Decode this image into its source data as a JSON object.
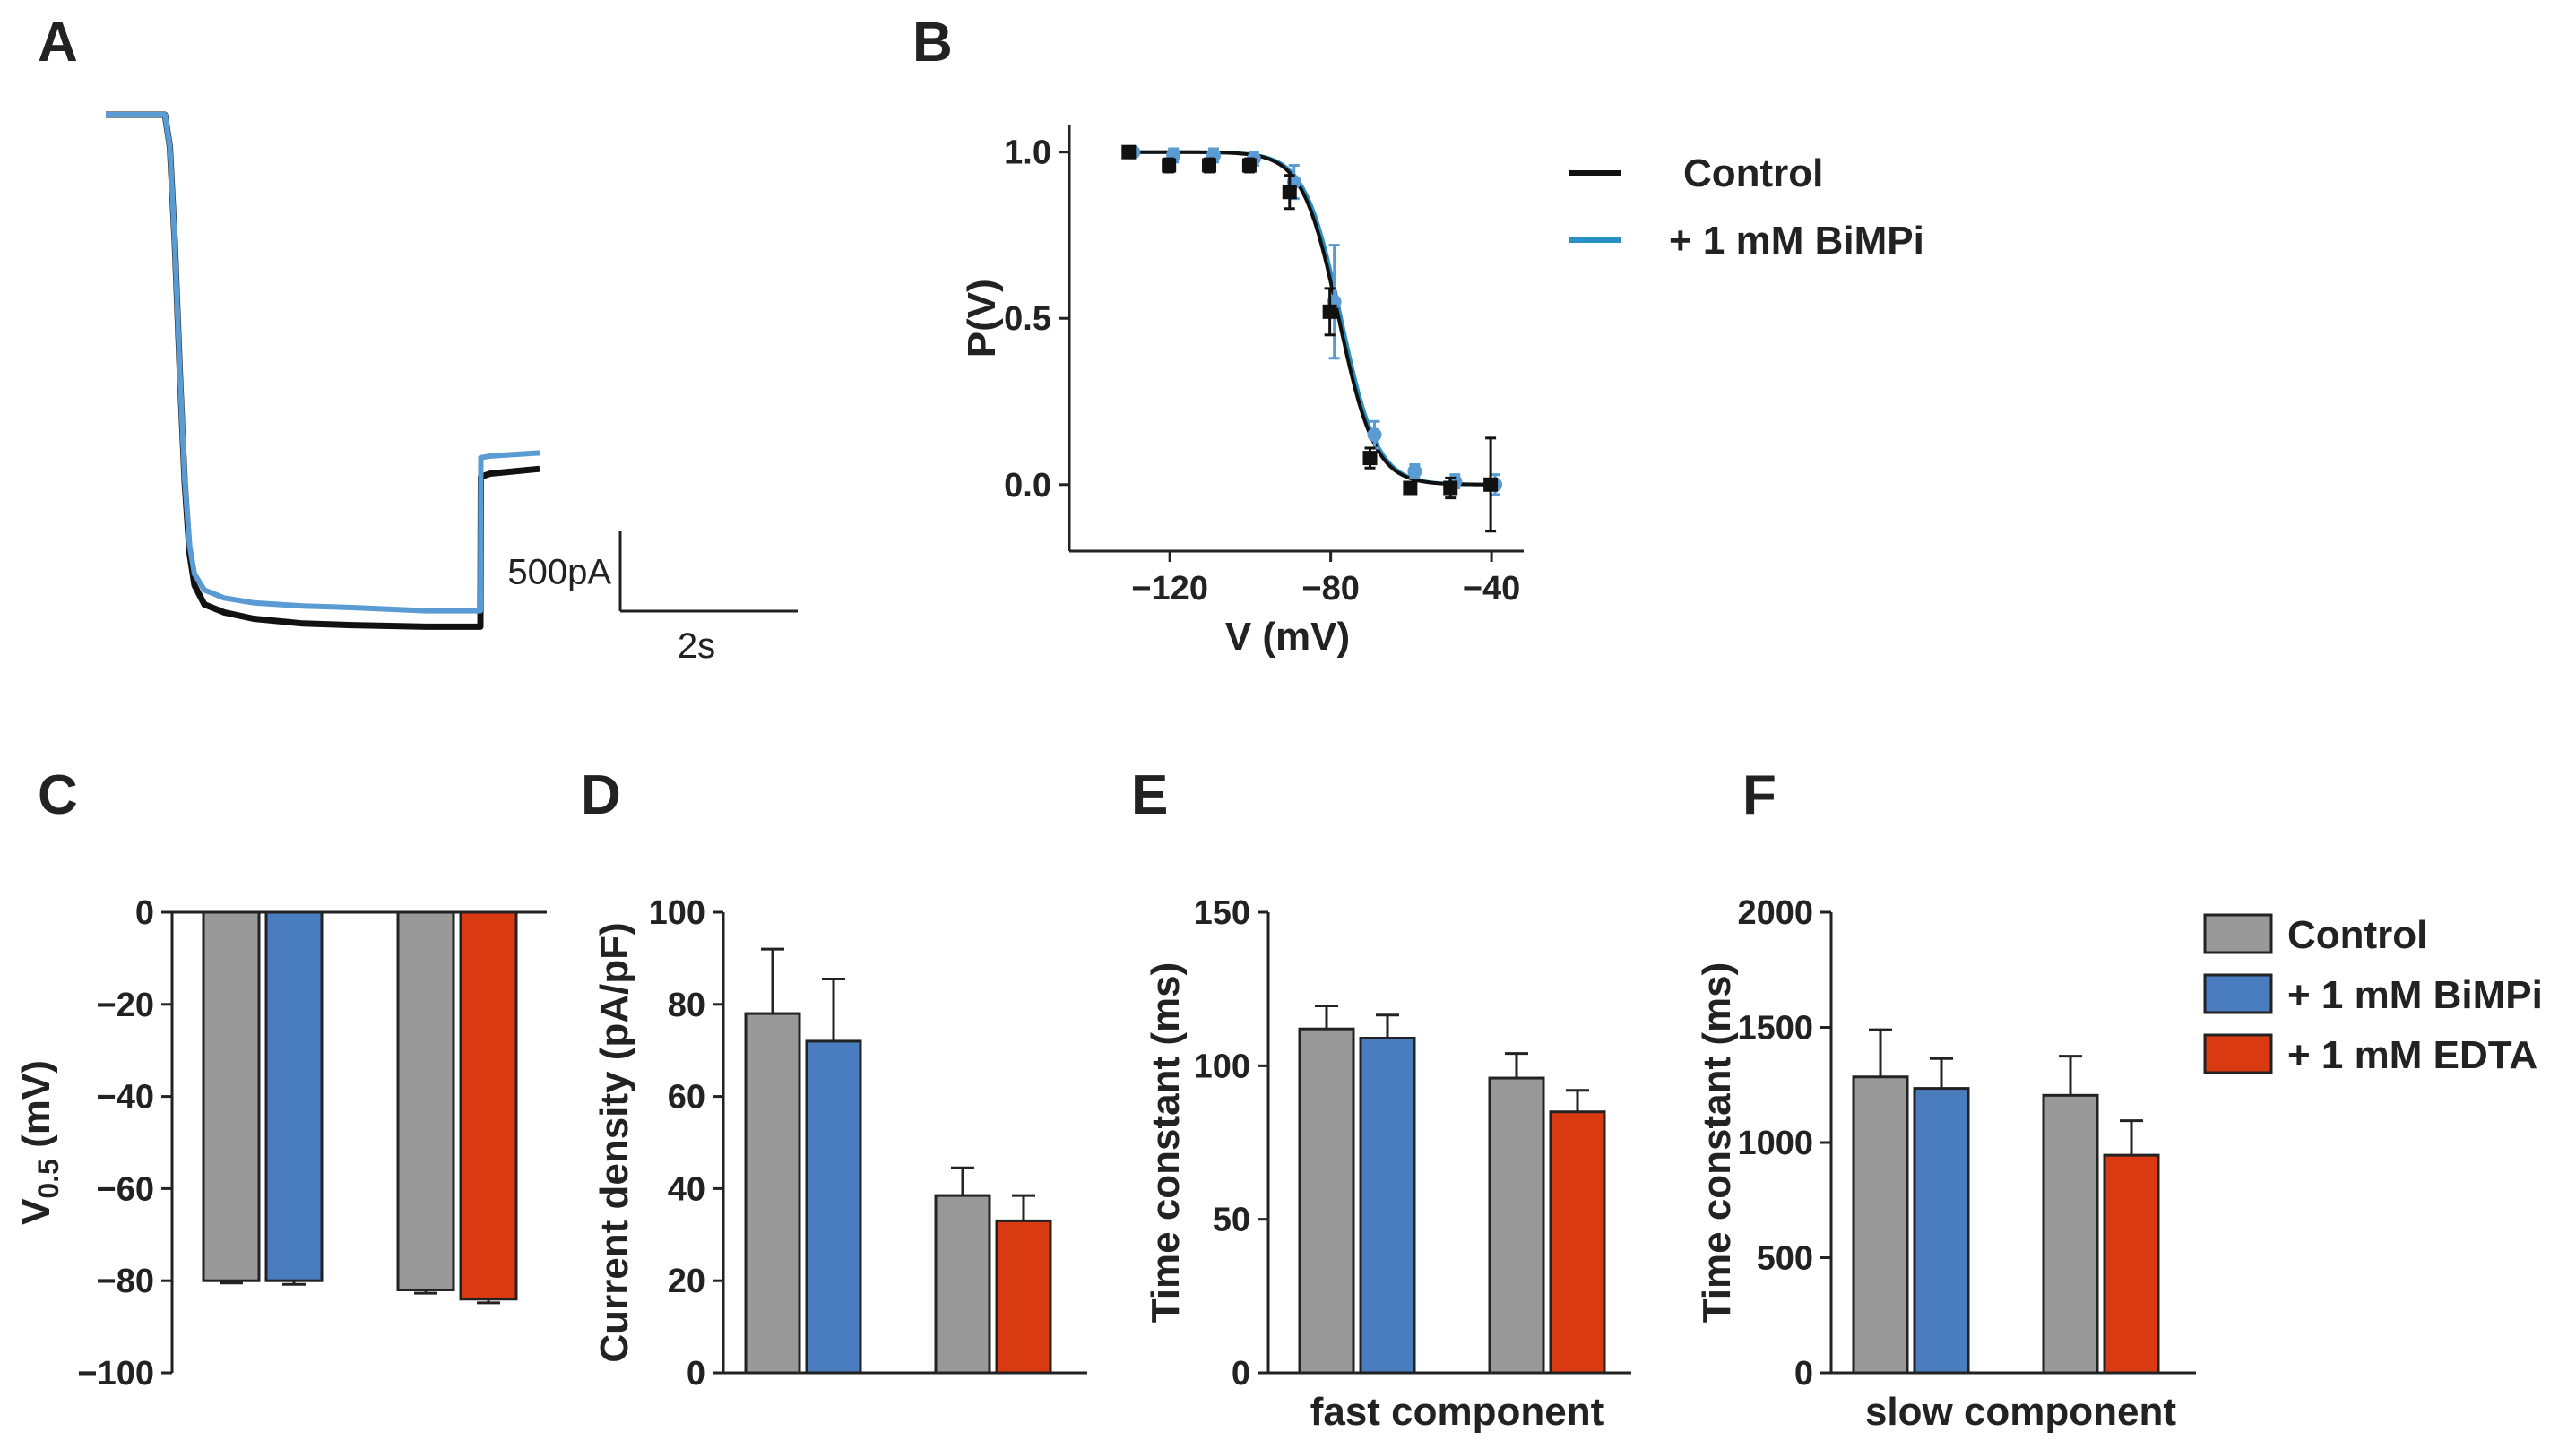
{
  "panels": {
    "A": {
      "letter": "A"
    },
    "B": {
      "letter": "B"
    },
    "C": {
      "letter": "C"
    },
    "D": {
      "letter": "D"
    },
    "E": {
      "letter": "E"
    },
    "F": {
      "letter": "F"
    }
  },
  "colors": {
    "control": "#999999",
    "bimpi": "#4a7cc0",
    "edta": "#d93a12",
    "trace_control": "#111111",
    "trace_bimpi": "#5a9bd3",
    "fit_bimpi": "#2a8fc2"
  },
  "chart_data": [
    {
      "panel": "A",
      "type": "line",
      "title": "",
      "xlabel": "",
      "ylabel": "",
      "scale_bar": {
        "current_label": "500pA",
        "time_label": "2s",
        "current_pA": 500,
        "time_s": 2
      },
      "series": [
        {
          "name": "Control",
          "color": "#111111",
          "x": [
            0,
            1.2,
            1.3,
            1.4,
            1.5,
            1.6,
            1.7,
            1.8,
            2.0,
            2.4,
            3.0,
            4.0,
            5.0,
            6.5,
            7.6,
            7.61,
            7.8,
            8.8
          ],
          "y": [
            0,
            0,
            -200,
            -800,
            -1600,
            -2300,
            -2750,
            -2950,
            -3070,
            -3120,
            -3160,
            -3190,
            -3200,
            -3210,
            -3210,
            -2270,
            -2250,
            -2220
          ]
        },
        {
          "name": "+ 1 mM BiMPi",
          "color": "#5a9bd3",
          "x": [
            0,
            1.2,
            1.3,
            1.4,
            1.5,
            1.6,
            1.7,
            1.8,
            2.0,
            2.4,
            3.0,
            4.0,
            5.0,
            6.5,
            7.6,
            7.61,
            7.8,
            8.8
          ],
          "y": [
            0,
            0,
            -200,
            -800,
            -1600,
            -2280,
            -2700,
            -2880,
            -2980,
            -3030,
            -3060,
            -3080,
            -3090,
            -3110,
            -3110,
            -2150,
            -2140,
            -2120
          ]
        }
      ]
    },
    {
      "panel": "B",
      "type": "scatter",
      "xlabel": "V (mV)",
      "ylabel": "P(V)",
      "xlim": [
        -145,
        -32
      ],
      "ylim": [
        -0.2,
        1.08
      ],
      "xticks": [
        "−120",
        "−80",
        "−40"
      ],
      "yticks": [
        "0.0",
        "0.5",
        "1.0"
      ],
      "legend": [
        "Control",
        "+ 1 mM BiMPi"
      ],
      "legend_position": "right",
      "fit": {
        "v_half": -78,
        "slope": 4.5
      },
      "series": [
        {
          "name": "Control",
          "color": "#111111",
          "x": [
            -130,
            -120,
            -110,
            -100,
            -90,
            -80,
            -70,
            -60,
            -50,
            -40
          ],
          "y": [
            1.0,
            0.96,
            0.96,
            0.96,
            0.88,
            0.52,
            0.08,
            -0.01,
            -0.01,
            0.0
          ],
          "err": [
            0.01,
            0.02,
            0.02,
            0.02,
            0.05,
            0.07,
            0.03,
            0.01,
            0.03,
            0.14
          ]
        },
        {
          "name": "+ 1 mM BiMPi",
          "color": "#5a9bd3",
          "x": [
            -130,
            -120,
            -110,
            -100,
            -90,
            -80,
            -70,
            -60,
            -50,
            -40
          ],
          "y": [
            1.0,
            0.99,
            0.99,
            0.98,
            0.91,
            0.55,
            0.15,
            0.04,
            0.01,
            0.0
          ],
          "err": [
            0.01,
            0.02,
            0.02,
            0.02,
            0.05,
            0.17,
            0.04,
            0.02,
            0.02,
            0.03
          ]
        }
      ]
    },
    {
      "panel": "C",
      "type": "bar",
      "ylabel": "V",
      "ylabel_sub": "0.5",
      "ylabel_unit": " (mV)",
      "ylim": [
        -100,
        0
      ],
      "yticks": [
        "0",
        "−20",
        "−40",
        "−60",
        "−80",
        "−100"
      ],
      "groups": [
        {
          "bars": [
            {
              "series": "Control",
              "value": -80,
              "err": 0.5
            },
            {
              "series": "+ 1 mM BiMPi",
              "value": -80,
              "err": 0.8
            }
          ]
        },
        {
          "bars": [
            {
              "series": "Control",
              "value": -82,
              "err": 0.7
            },
            {
              "series": "+ 1 mM EDTA",
              "value": -84,
              "err": 0.8
            }
          ]
        }
      ]
    },
    {
      "panel": "D",
      "type": "bar",
      "ylabel": "Current density (pA/pF)",
      "ylim": [
        0,
        100
      ],
      "yticks": [
        "0",
        "20",
        "40",
        "60",
        "80",
        "100"
      ],
      "groups": [
        {
          "bars": [
            {
              "series": "Control",
              "value": 78,
              "err": 14
            },
            {
              "series": "+ 1 mM BiMPi",
              "value": 72,
              "err": 13.5
            }
          ]
        },
        {
          "bars": [
            {
              "series": "Control",
              "value": 38.5,
              "err": 6
            },
            {
              "series": "+ 1 mM EDTA",
              "value": 33,
              "err": 5.5
            }
          ]
        }
      ]
    },
    {
      "panel": "E",
      "type": "bar",
      "ylabel": "Time constant (ms)",
      "xlabel": "fast component",
      "ylim": [
        0,
        150
      ],
      "yticks": [
        "0",
        "50",
        "100",
        "150"
      ],
      "groups": [
        {
          "bars": [
            {
              "series": "Control",
              "value": 112,
              "err": 7.5
            },
            {
              "series": "+ 1 mM BiMPi",
              "value": 109,
              "err": 7.5
            }
          ]
        },
        {
          "bars": [
            {
              "series": "Control",
              "value": 96,
              "err": 8
            },
            {
              "series": "+ 1 mM EDTA",
              "value": 85,
              "err": 7
            }
          ]
        }
      ]
    },
    {
      "panel": "F",
      "type": "bar",
      "ylabel": "Time constant (ms)",
      "xlabel": "slow component",
      "ylim": [
        0,
        2000
      ],
      "yticks": [
        "0",
        "500",
        "1000",
        "1500",
        "2000"
      ],
      "legend": [
        "Control",
        "+ 1 mM BiMPi",
        "+ 1 mM EDTA"
      ],
      "legend_position": "right",
      "groups": [
        {
          "bars": [
            {
              "series": "Control",
              "value": 1285,
              "err": 205
            },
            {
              "series": "+ 1 mM BiMPi",
              "value": 1235,
              "err": 130
            }
          ]
        },
        {
          "bars": [
            {
              "series": "Control",
              "value": 1205,
              "err": 170
            },
            {
              "series": "+ 1 mM EDTA",
              "value": 945,
              "err": 150
            }
          ]
        }
      ]
    }
  ]
}
